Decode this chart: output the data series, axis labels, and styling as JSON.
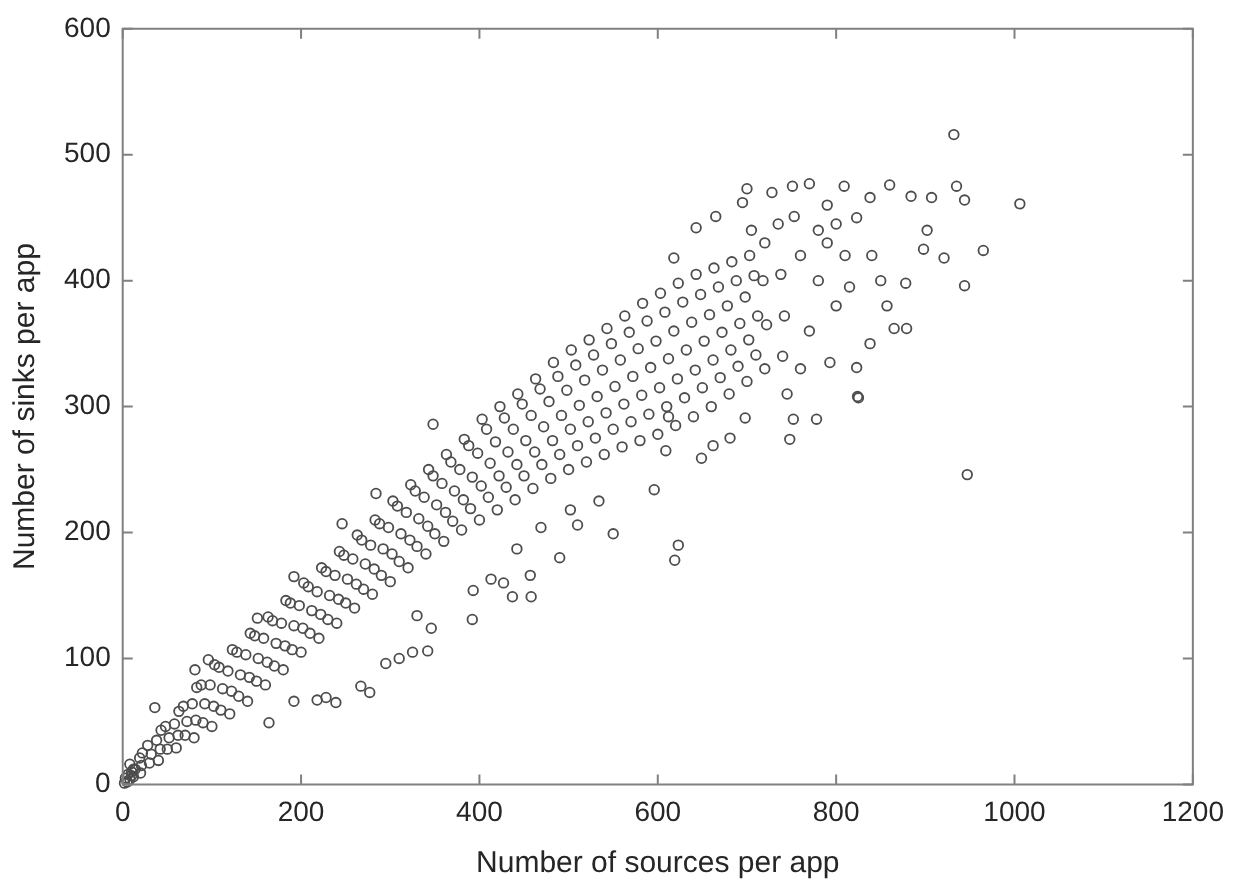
{
  "chart_data": {
    "type": "scatter",
    "xlabel": "Number of sources per app",
    "ylabel": "Number of sinks per app",
    "xlim": [
      0,
      1200
    ],
    "ylim": [
      0,
      600
    ],
    "xticks": [
      0,
      200,
      400,
      600,
      800,
      1000,
      1200
    ],
    "yticks": [
      0,
      100,
      200,
      300,
      400,
      500,
      600
    ],
    "grid": false,
    "legend": false,
    "marker": "circle",
    "color": "#4d4d4d",
    "x": [
      2,
      3,
      5,
      6,
      8,
      10,
      12,
      14,
      20,
      21,
      19,
      22,
      40,
      42,
      38,
      43,
      60,
      62,
      58,
      63,
      80,
      82,
      78,
      83,
      100,
      102,
      98,
      103,
      120,
      122,
      118,
      123,
      140,
      142,
      138,
      143,
      160,
      162,
      158,
      163,
      180,
      182,
      178,
      183,
      200,
      202,
      198,
      203,
      220,
      222,
      218,
      223,
      240,
      242,
      238,
      243,
      260,
      262,
      258,
      263,
      280,
      282,
      278,
      283,
      300,
      302,
      298,
      303,
      320,
      322,
      318,
      323,
      340,
      342,
      338,
      343,
      360,
      362,
      358,
      363,
      380,
      382,
      378,
      383,
      400,
      402,
      398,
      403,
      420,
      422,
      418,
      423,
      440,
      442,
      438,
      443,
      460,
      462,
      458,
      463,
      480,
      482,
      478,
      483,
      500,
      502,
      498,
      503,
      520,
      522,
      518,
      523,
      540,
      542,
      538,
      543,
      560,
      562,
      558,
      563,
      580,
      582,
      578,
      583,
      600,
      602,
      598,
      603,
      620,
      622,
      618,
      623,
      640,
      642,
      638,
      643,
      660,
      662,
      658,
      663,
      680,
      682,
      678,
      683,
      700,
      702,
      698,
      703,
      720,
      722,
      718,
      740,
      742,
      738,
      932,
      1006,
      935,
      944,
      860,
      884,
      907,
      838,
      770,
      751,
      809,
      965,
      944,
      921,
      898,
      902,
      878,
      879,
      865,
      857,
      838,
      824,
      823,
      793,
      778,
      752,
      745,
      700,
      728,
      695,
      643,
      665,
      753,
      823,
      790,
      618,
      947,
      623,
      619,
      748,
      649,
      662,
      698,
      681,
      825,
      612,
      609,
      239,
      218,
      267,
      277,
      228,
      192,
      164,
      342,
      325,
      295,
      310,
      392,
      346,
      437,
      458,
      490,
      510,
      550,
      457,
      427,
      413,
      393,
      596,
      534,
      502,
      442,
      469,
      330,
      348,
      284,
      246,
      192,
      151,
      81,
      36,
      96,
      760,
      780,
      800,
      810,
      770,
      790,
      815,
      760,
      840,
      850,
      780,
      800,
      720,
      735,
      705,
      10,
      12,
      8,
      30,
      32,
      28,
      50,
      52,
      48,
      70,
      72,
      68,
      90,
      92,
      88,
      110,
      112,
      108,
      130,
      132,
      128,
      150,
      152,
      148,
      170,
      172,
      168,
      190,
      192,
      188,
      210,
      212,
      208,
      230,
      232,
      228,
      250,
      252,
      248,
      270,
      272,
      268,
      290,
      292,
      288,
      310,
      312,
      308,
      330,
      332,
      328,
      350,
      352,
      348,
      370,
      372,
      368,
      390,
      392,
      388,
      410,
      412,
      408,
      430,
      432,
      428,
      450,
      452,
      448,
      470,
      472,
      468,
      490,
      492,
      488,
      510,
      512,
      508,
      530,
      532,
      528,
      550,
      552,
      548,
      570,
      572,
      568,
      590,
      592,
      588,
      610,
      612,
      608,
      630,
      632,
      628,
      650,
      652,
      648,
      670,
      672,
      668,
      690,
      692,
      688,
      710,
      712,
      708
    ],
    "values": [
      1,
      5,
      2,
      8,
      4,
      10,
      6,
      12,
      9,
      15,
      21,
      25,
      19,
      28,
      35,
      43,
      29,
      39,
      48,
      58,
      37,
      51,
      64,
      77,
      46,
      62,
      79,
      95,
      56,
      74,
      90,
      107,
      66,
      85,
      103,
      120,
      79,
      97,
      116,
      133,
      91,
      110,
      128,
      146,
      105,
      124,
      142,
      160,
      116,
      135,
      153,
      172,
      128,
      147,
      166,
      185,
      140,
      159,
      179,
      198,
      151,
      171,
      190,
      210,
      161,
      183,
      204,
      225,
      172,
      194,
      216,
      238,
      183,
      205,
      228,
      250,
      193,
      216,
      239,
      262,
      202,
      226,
      250,
      274,
      210,
      237,
      263,
      290,
      218,
      245,
      272,
      300,
      226,
      254,
      282,
      310,
      235,
      264,
      293,
      322,
      243,
      273,
      304,
      335,
      250,
      282,
      313,
      345,
      256,
      288,
      321,
      353,
      262,
      295,
      329,
      362,
      268,
      302,
      337,
      372,
      273,
      309,
      346,
      382,
      278,
      315,
      352,
      390,
      285,
      322,
      360,
      398,
      292,
      329,
      367,
      405,
      300,
      337,
      373,
      410,
      310,
      345,
      380,
      415,
      320,
      353,
      387,
      420,
      330,
      365,
      400,
      340,
      372,
      405,
      516,
      461,
      475,
      464,
      476,
      467,
      466,
      466,
      477,
      475,
      475,
      424,
      396,
      418,
      425,
      440,
      398,
      362,
      362,
      380,
      350,
      308,
      331,
      335,
      290,
      290,
      310,
      473,
      470,
      462,
      442,
      451,
      451,
      450,
      460,
      418,
      246,
      190,
      178,
      274,
      259,
      269,
      291,
      275,
      307,
      292,
      265,
      65,
      67,
      78,
      73,
      69,
      66,
      49,
      106,
      105,
      96,
      100,
      131,
      124,
      149,
      149,
      180,
      206,
      199,
      166,
      160,
      163,
      154,
      234,
      225,
      218,
      187,
      204,
      134,
      286,
      231,
      207,
      165,
      132,
      91,
      61,
      99,
      420,
      400,
      380,
      420,
      360,
      430,
      395,
      330,
      420,
      400,
      440,
      445,
      430,
      445,
      440,
      7,
      12,
      16,
      17,
      24,
      31,
      28,
      37,
      46,
      39,
      50,
      62,
      49,
      64,
      79,
      59,
      76,
      93,
      70,
      87,
      105,
      82,
      100,
      118,
      94,
      112,
      130,
      107,
      126,
      144,
      120,
      138,
      157,
      131,
      150,
      169,
      144,
      163,
      182,
      155,
      175,
      194,
      166,
      187,
      207,
      177,
      199,
      221,
      189,
      211,
      233,
      199,
      222,
      245,
      209,
      233,
      256,
      219,
      244,
      269,
      228,
      255,
      282,
      236,
      264,
      291,
      245,
      273,
      302,
      254,
      284,
      314,
      262,
      293,
      324,
      269,
      301,
      333,
      275,
      308,
      341,
      282,
      316,
      350,
      288,
      324,
      359,
      294,
      331,
      368,
      300,
      338,
      375,
      307,
      345,
      383,
      315,
      352,
      389,
      323,
      359,
      395,
      332,
      366,
      400,
      341,
      372,
      404
    ]
  }
}
